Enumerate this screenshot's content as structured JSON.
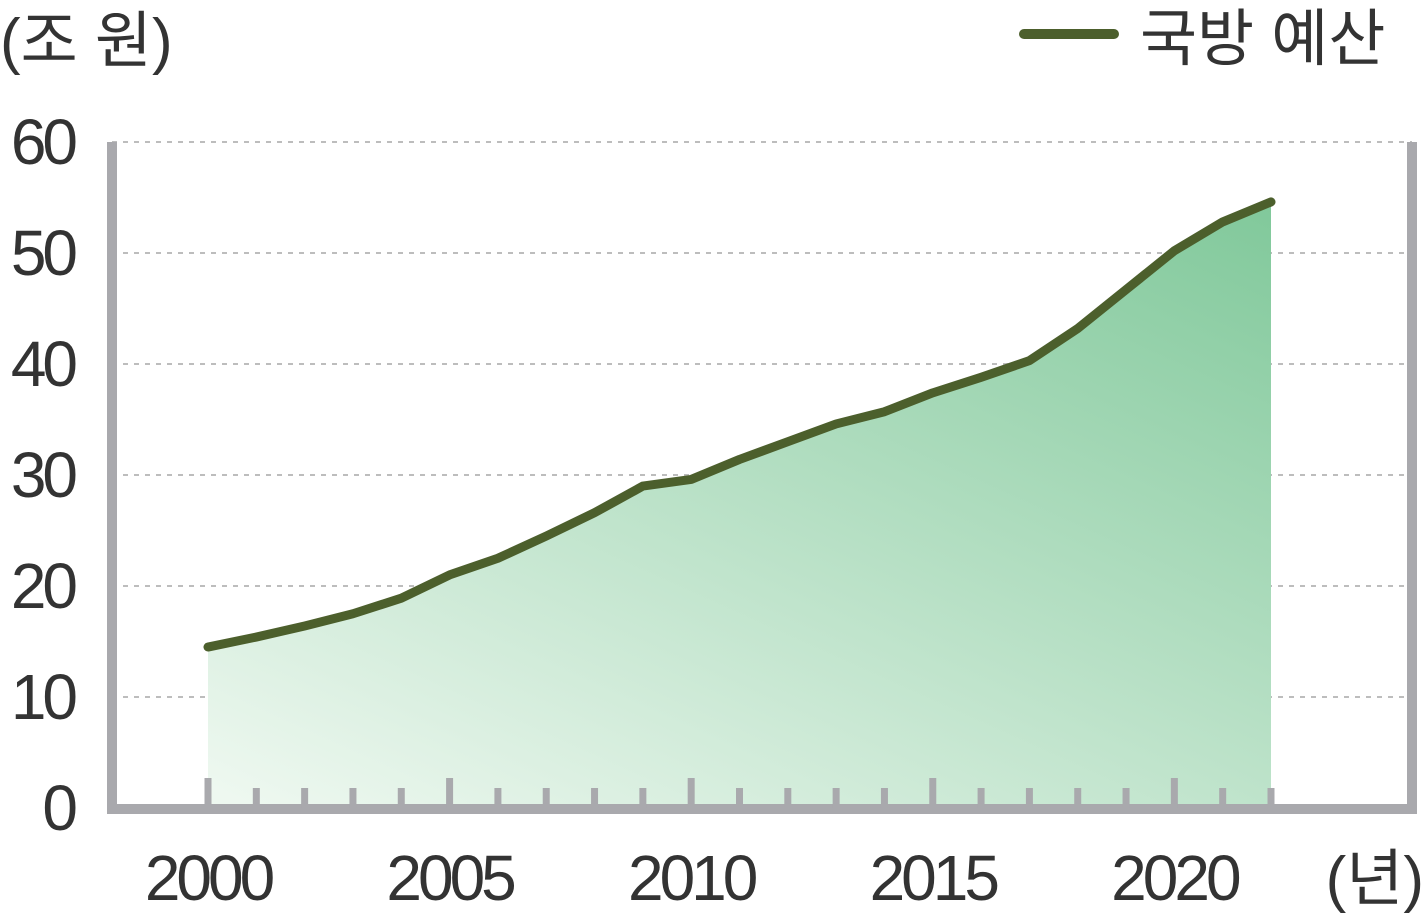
{
  "chart_data": {
    "type": "area",
    "title": "",
    "ylabel": "(조 원)",
    "xlabel": "(년)",
    "ylim": [
      0,
      60
    ],
    "xlim": [
      1998,
      2026
    ],
    "yticks": [
      "0",
      "10",
      "20",
      "30",
      "40",
      "50",
      "60"
    ],
    "xticks": [
      "2000",
      "2005",
      "2010",
      "2015",
      "2020"
    ],
    "grid": true,
    "legend_position": "top-right",
    "series": [
      {
        "name": "국방 예산",
        "x": [
          2000,
          2001,
          2002,
          2003,
          2004,
          2005,
          2006,
          2007,
          2008,
          2009,
          2010,
          2011,
          2012,
          2013,
          2014,
          2015,
          2016,
          2017,
          2018,
          2019,
          2020,
          2021,
          2022
        ],
        "values": [
          14.5,
          15.4,
          16.4,
          17.5,
          18.9,
          21.0,
          22.5,
          24.5,
          26.6,
          29.0,
          29.6,
          31.4,
          33.0,
          34.6,
          35.7,
          37.4,
          38.8,
          40.3,
          43.2,
          46.7,
          50.2,
          52.8,
          54.6
        ]
      }
    ],
    "colors": {
      "line": "#4c5f2c",
      "area_top": "#80c89a",
      "area_bottom": "#eef8f0",
      "axis": "#a9a9ad",
      "grid": "#bdbdbd",
      "text": "#333333"
    }
  }
}
